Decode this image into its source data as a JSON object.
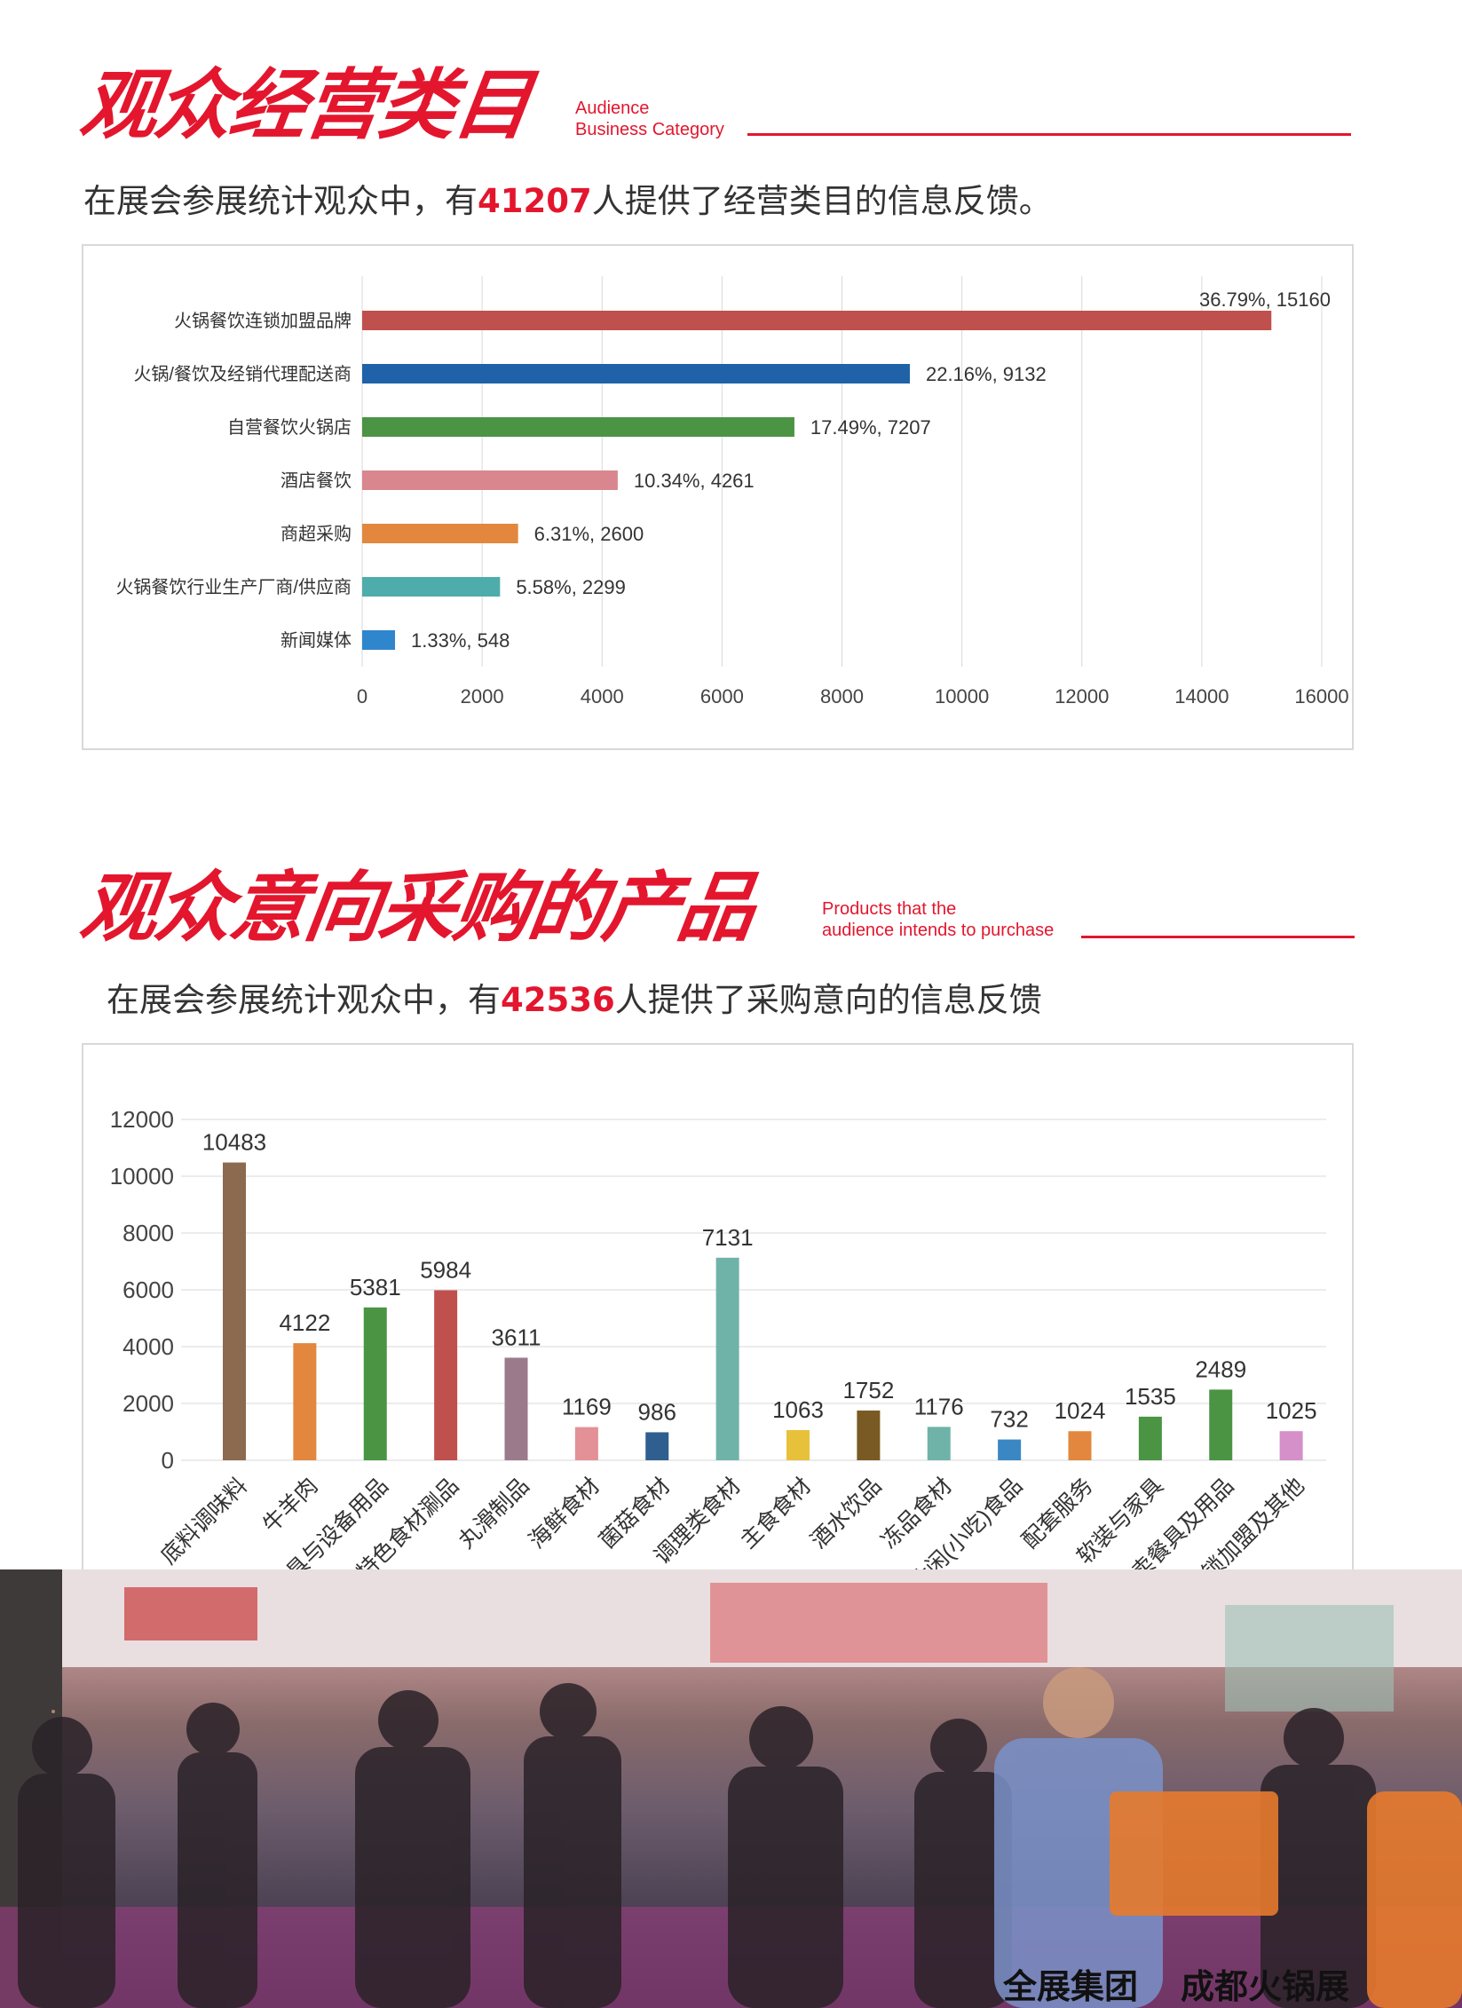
{
  "section1": {
    "title": "观众经营类目",
    "subtitle_line1": "Audience",
    "subtitle_line2": "Business Category",
    "intro_prefix": "在展会参展统计观众中，有",
    "intro_number": "41207",
    "intro_suffix": "人提供了经营类目的信息反馈。"
  },
  "section2": {
    "title": "观众意向采购的产品",
    "subtitle_line1": "Products that the",
    "subtitle_line2": "audience intends to purchase",
    "intro_prefix": "在展会参展统计观众中，有",
    "intro_number": "42536",
    "intro_suffix": "人提供了采购意向的信息反馈"
  },
  "chart_data": [
    {
      "type": "bar",
      "orientation": "horizontal",
      "categories": [
        "火锅餐饮连锁加盟品牌",
        "火锅/餐饮及经销代理配送商",
        "自营餐饮火锅店",
        "酒店餐饮",
        "商超采购",
        "火锅餐饮行业生产厂商/供应商",
        "新闻媒体"
      ],
      "values": [
        15160,
        9132,
        7207,
        4261,
        2600,
        2299,
        548
      ],
      "data_labels": [
        "36.79%, 15160",
        "22.16%, 9132",
        "17.49%, 7207",
        "10.34%, 4261",
        "6.31%, 2600",
        "5.58%, 2299",
        "1.33%, 548"
      ],
      "colors": [
        "#c0504d",
        "#1f62a8",
        "#4a9444",
        "#d9868f",
        "#e2873d",
        "#4eadab",
        "#2f86cc"
      ],
      "xlim": [
        0,
        16000
      ],
      "ticks": [
        0,
        2000,
        4000,
        6000,
        8000,
        10000,
        12000,
        14000,
        16000
      ],
      "grid": "vertical"
    },
    {
      "type": "bar",
      "orientation": "vertical",
      "categories": [
        "底料调味料",
        "牛羊肉",
        "餐具与设备用品",
        "特色食材涮品",
        "丸滑制品",
        "海鲜食材",
        "菌菇食材",
        "调理类食材",
        "主食食材",
        "酒水饮品",
        "冻品食材",
        "休闲(小吃)食品",
        "配套服务",
        "软装与家具",
        "外卖餐具及用品",
        "连锁加盟及其他"
      ],
      "values": [
        10483,
        4122,
        5381,
        5984,
        3611,
        1169,
        986,
        7131,
        1063,
        1752,
        1176,
        732,
        1024,
        1535,
        2489,
        1025
      ],
      "colors": [
        "#8b6a4f",
        "#e2873d",
        "#4a9444",
        "#c0504d",
        "#9b7a8c",
        "#e39196",
        "#2f5f8e",
        "#6fb3a8",
        "#e8c13b",
        "#7a5a23",
        "#6fb3a8",
        "#3a87c4",
        "#e2873d",
        "#4a9444",
        "#4a9444",
        "#d58fc9"
      ],
      "ylim": [
        0,
        12000
      ],
      "ticks": [
        0,
        2000,
        4000,
        6000,
        8000,
        10000,
        12000
      ],
      "grid": "horizontal"
    }
  ],
  "photo": {
    "brand_left": "全展集团",
    "brand_right": "成都火锅展"
  }
}
